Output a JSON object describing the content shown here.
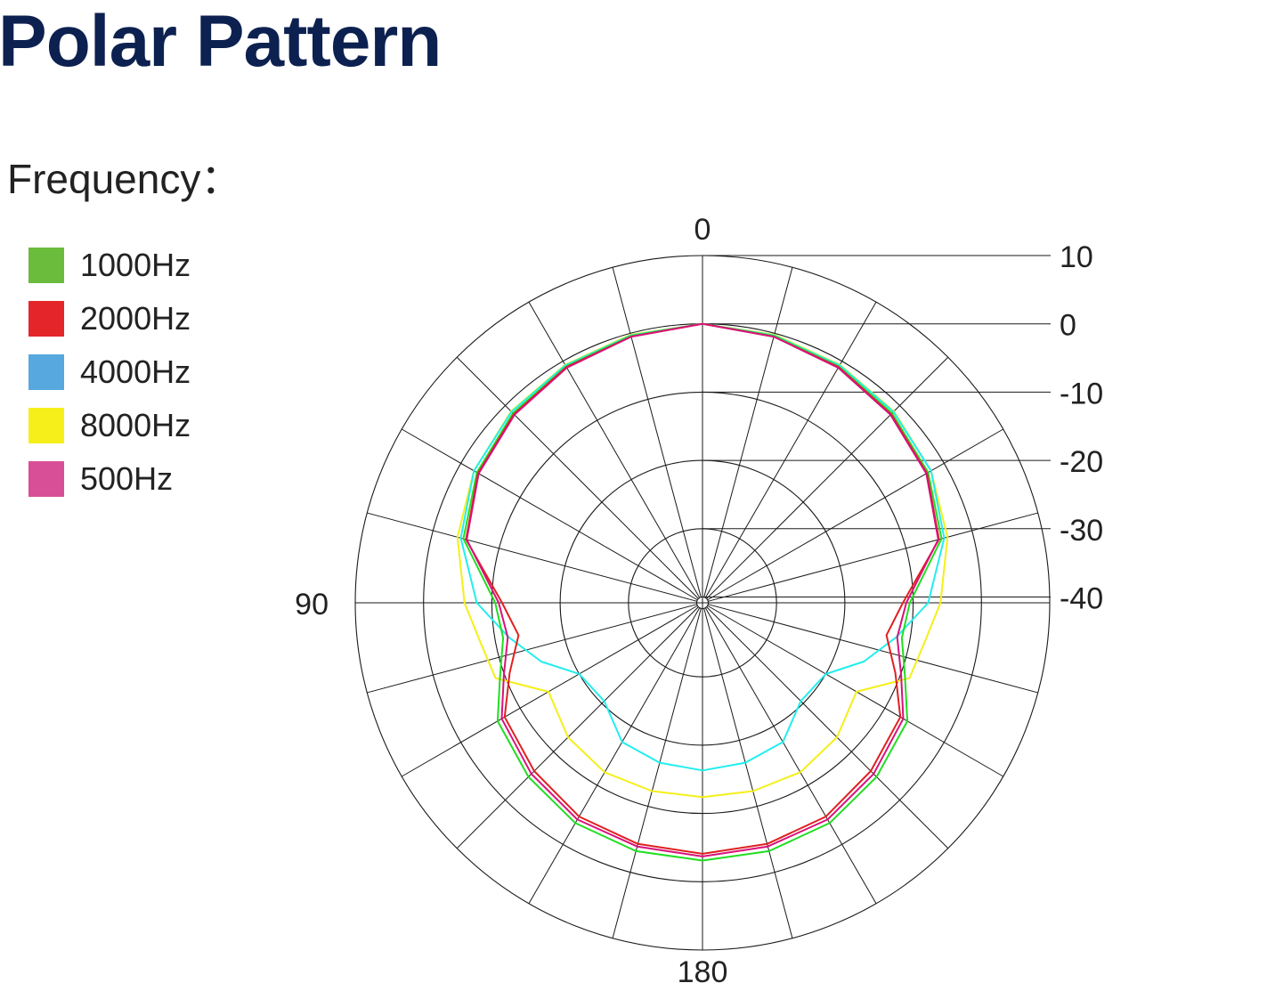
{
  "title": "Polar Pattern",
  "legend_heading": "Frequency：",
  "chart_data": {
    "type": "polar",
    "title": "Polar Pattern",
    "angle_labels": [
      {
        "angle": 0,
        "label": "0"
      },
      {
        "angle": 90,
        "label": "90"
      },
      {
        "angle": 180,
        "label": "180"
      }
    ],
    "radial_ticks": [
      {
        "value": 10,
        "label": "10"
      },
      {
        "value": 0,
        "label": "0"
      },
      {
        "value": -10,
        "label": "-10"
      },
      {
        "value": -20,
        "label": "-20"
      },
      {
        "value": -30,
        "label": "-30"
      },
      {
        "value": -40,
        "label": "-40"
      }
    ],
    "rlim": [
      -40,
      10
    ],
    "angle_grid_step": 15,
    "grid": true,
    "legend_position": "top-left",
    "series": [
      {
        "name": "1000Hz",
        "color": "#22dd22",
        "legend_color": "#6bbb3c",
        "angles": [
          0,
          15,
          30,
          45,
          60,
          75,
          90,
          100,
          110,
          120,
          135,
          150,
          165,
          180
        ],
        "values": [
          0,
          -0.4,
          -0.9,
          -1.6,
          -2.7,
          -4.6,
          -10.5,
          -11.2,
          -9.3,
          -6.2,
          -4.8,
          -3.6,
          -3.2,
          -3.1
        ]
      },
      {
        "name": "2000Hz",
        "color": "#e02020",
        "legend_color": "#e4262a",
        "angles": [
          0,
          15,
          30,
          45,
          60,
          75,
          90,
          100,
          110,
          120,
          135,
          150,
          165,
          180
        ],
        "values": [
          0,
          -0.5,
          -1.0,
          -1.8,
          -2.9,
          -5.0,
          -11.5,
          -13.5,
          -10.8,
          -7.4,
          -6.0,
          -4.7,
          -4.3,
          -4.1
        ]
      },
      {
        "name": "4000Hz",
        "color": "#22eeee",
        "legend_color": "#56a8de",
        "angles": [
          0,
          15,
          30,
          45,
          60,
          75,
          90,
          100,
          110,
          120,
          135,
          150,
          165,
          180
        ],
        "values": [
          0,
          -0.3,
          -0.7,
          -1.3,
          -2.2,
          -4.2,
          -7.8,
          -12.0,
          -15.7,
          -20.0,
          -20.5,
          -17.3,
          -16.6,
          -16.3
        ]
      },
      {
        "name": "8000Hz",
        "color": "#f5ef1a",
        "legend_color": "#f7ef1a",
        "angles": [
          0,
          15,
          30,
          45,
          60,
          75,
          90,
          100,
          110,
          120,
          135,
          150,
          165,
          180
        ],
        "values": [
          0,
          -0.2,
          -0.6,
          -1.2,
          -2.2,
          -3.7,
          -6.0,
          -7.8,
          -8.6,
          -14.8,
          -13.0,
          -12.2,
          -12.3,
          -12.4
        ]
      },
      {
        "name": "500Hz",
        "color": "#d8127a",
        "legend_color": "#d94f97",
        "angles": [
          0,
          15,
          30,
          45,
          60,
          75,
          90,
          100,
          110,
          120,
          135,
          150,
          165,
          180
        ],
        "values": [
          0,
          -0.5,
          -1.1,
          -1.9,
          -3.0,
          -5.1,
          -11.0,
          -11.9,
          -9.9,
          -6.9,
          -5.4,
          -4.2,
          -3.9,
          -3.7
        ]
      }
    ]
  }
}
